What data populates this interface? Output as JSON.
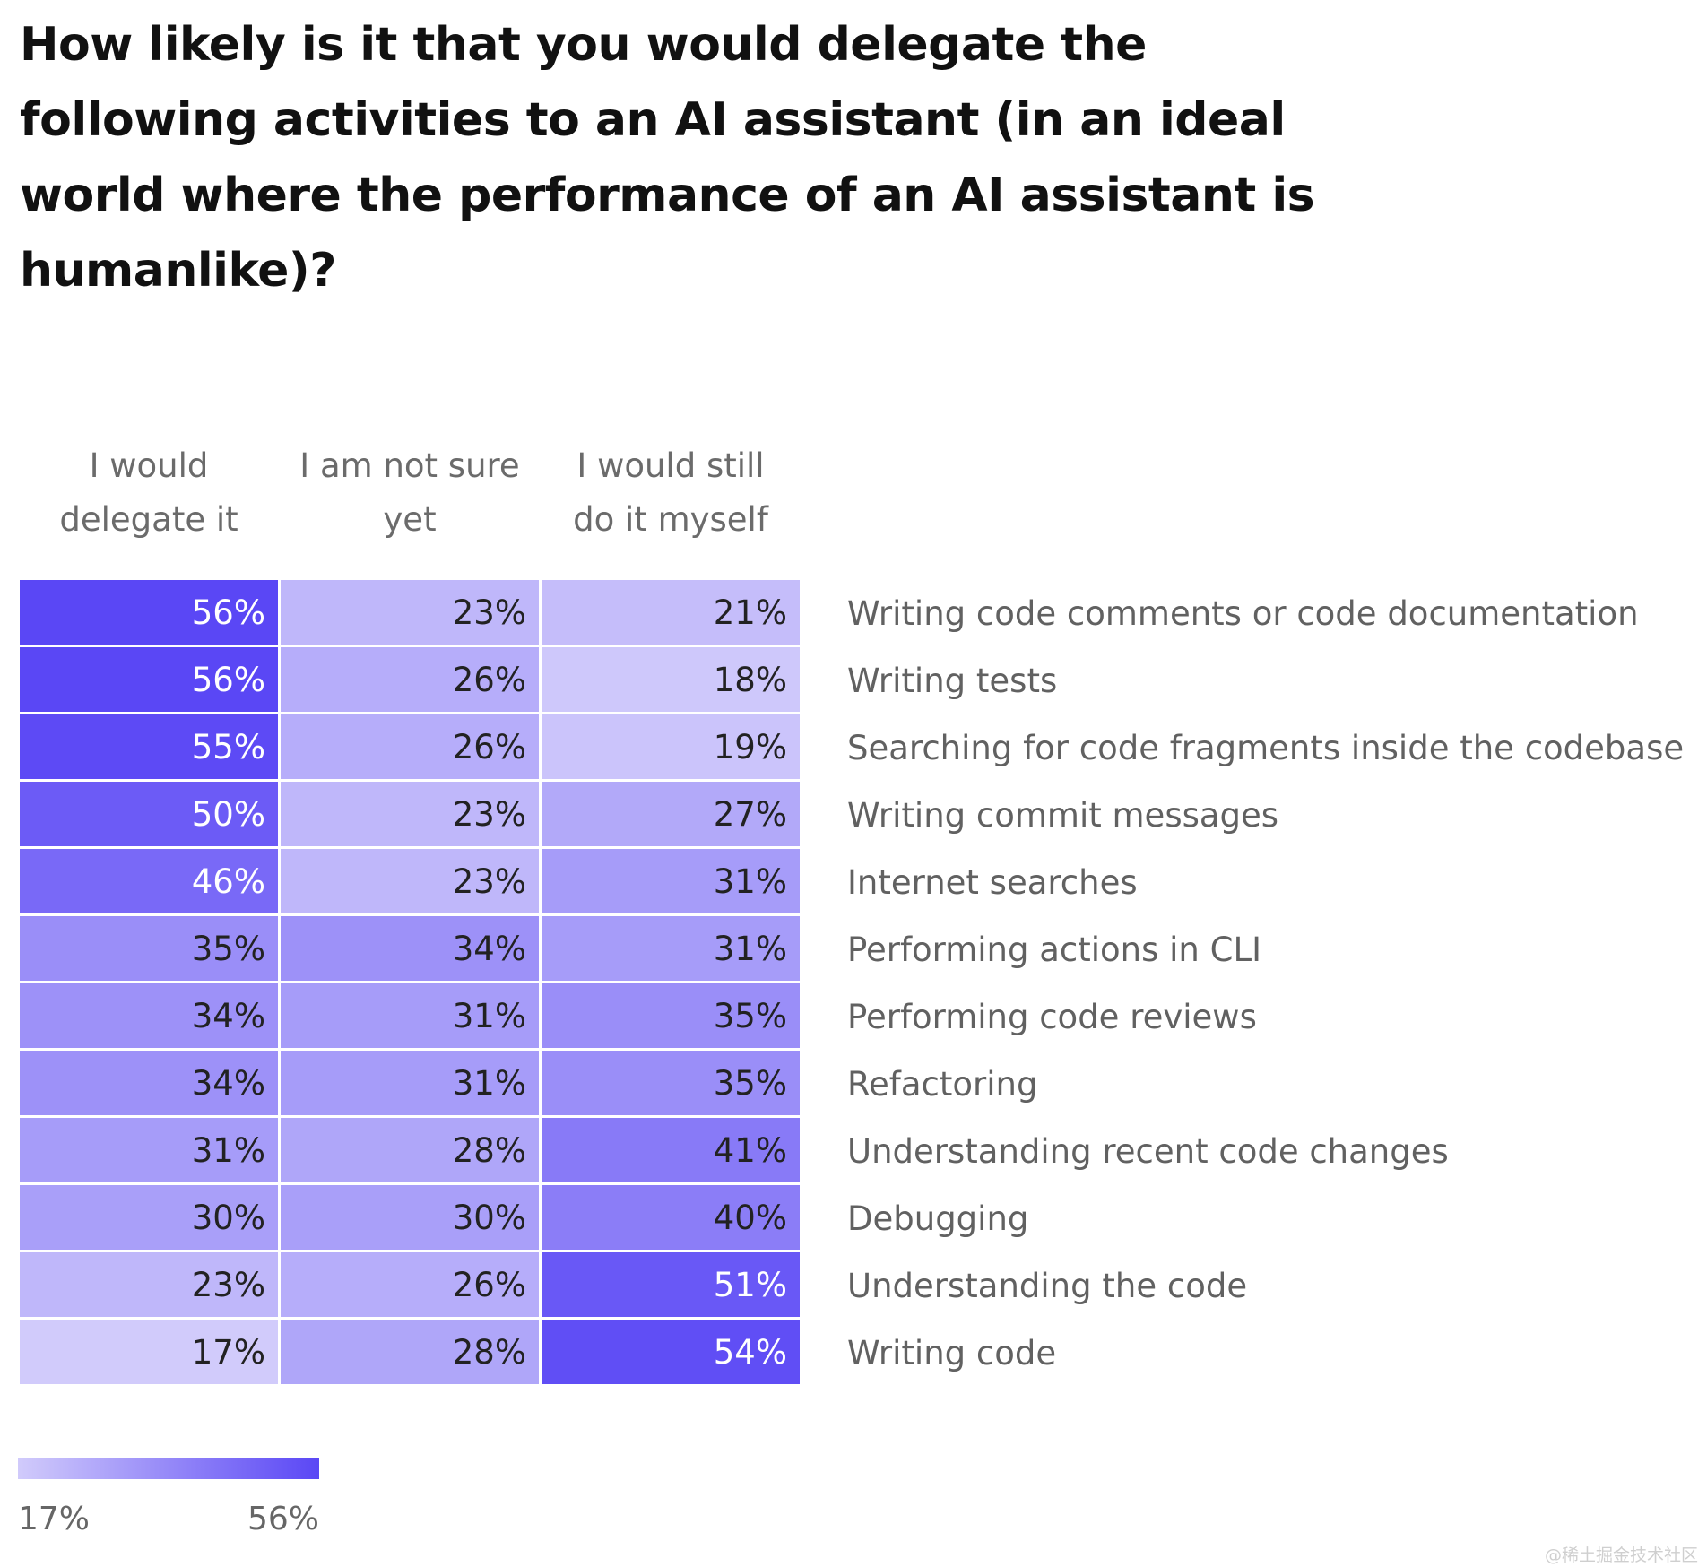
{
  "chart_data": {
    "type": "heatmap",
    "title": "How likely is it that you would delegate the following activities to an AI assistant (in an ideal world where the performance of an AI assistant is humanlike)?",
    "columns": [
      {
        "line1": "I would",
        "line2": "delegate it"
      },
      {
        "line1": "I am not sure",
        "line2": "yet"
      },
      {
        "line1": "I would still",
        "line2": "do it myself"
      }
    ],
    "rows": [
      {
        "label": "Writing code comments or code documentation",
        "values": [
          56,
          23,
          21
        ],
        "texts": [
          "56%",
          "23%",
          "21%"
        ]
      },
      {
        "label": "Writing tests",
        "values": [
          56,
          26,
          18
        ],
        "texts": [
          "56%",
          "26%",
          "18%"
        ]
      },
      {
        "label": "Searching for code fragments inside the codebase",
        "values": [
          55,
          26,
          19
        ],
        "texts": [
          "55%",
          "26%",
          "19%"
        ]
      },
      {
        "label": "Writing commit messages",
        "values": [
          50,
          23,
          27
        ],
        "texts": [
          "50%",
          "23%",
          "27%"
        ]
      },
      {
        "label": "Internet searches",
        "values": [
          46,
          23,
          31
        ],
        "texts": [
          "46%",
          "23%",
          "31%"
        ]
      },
      {
        "label": "Performing actions in CLI",
        "values": [
          35,
          34,
          31
        ],
        "texts": [
          "35%",
          "34%",
          "31%"
        ]
      },
      {
        "label": "Performing code reviews",
        "values": [
          34,
          31,
          35
        ],
        "texts": [
          "34%",
          "31%",
          "35%"
        ]
      },
      {
        "label": "Refactoring",
        "values": [
          34,
          31,
          35
        ],
        "texts": [
          "34%",
          "31%",
          "35%"
        ]
      },
      {
        "label": "Understanding recent code changes",
        "values": [
          31,
          28,
          41
        ],
        "texts": [
          "31%",
          "28%",
          "41%"
        ]
      },
      {
        "label": "Debugging",
        "values": [
          30,
          30,
          40
        ],
        "texts": [
          "30%",
          "30%",
          "40%"
        ]
      },
      {
        "label": "Understanding the code",
        "values": [
          23,
          26,
          51
        ],
        "texts": [
          "23%",
          "26%",
          "51%"
        ]
      },
      {
        "label": "Writing code",
        "values": [
          17,
          28,
          54
        ],
        "texts": [
          "17%",
          "28%",
          "54%"
        ]
      }
    ],
    "scale": {
      "min": 17,
      "max": 56,
      "min_label": "17%",
      "max_label": "56%",
      "min_color": "#d1cbfb",
      "max_color": "#5a47f5"
    }
  },
  "watermark": "@稀土掘金技术社区"
}
